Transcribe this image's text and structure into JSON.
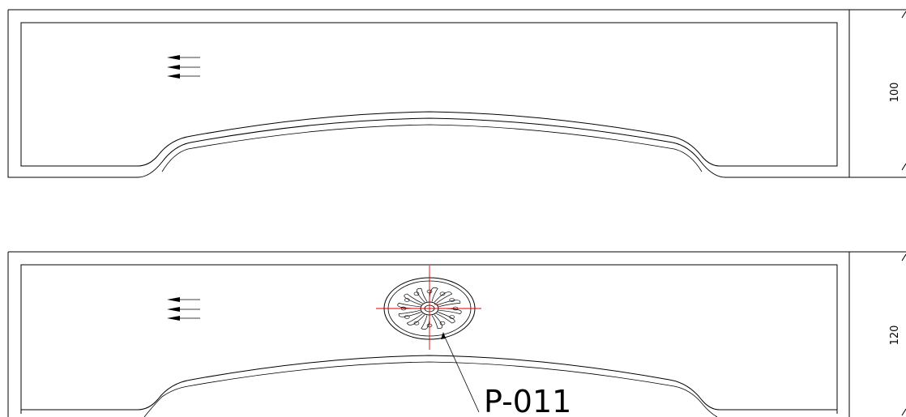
{
  "panels": [
    {
      "id": "top",
      "dimension": "100"
    },
    {
      "id": "bottom",
      "dimension": "120"
    }
  ],
  "ornament": {
    "label": "P-011",
    "icon": "rosette-carving-icon"
  },
  "colors": {
    "line": "#000000",
    "centerline": "#e00000",
    "background": "#ffffff"
  }
}
